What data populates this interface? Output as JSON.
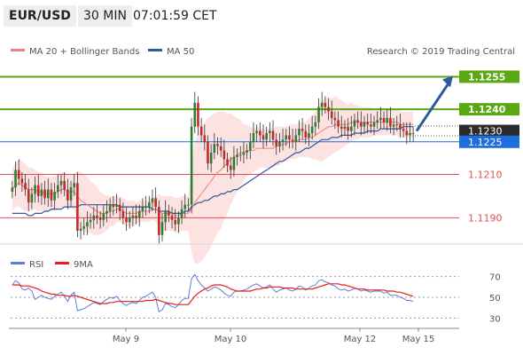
{
  "header": {
    "symbol": "EUR/USD",
    "timeframe": "30 MIN",
    "time": "07:01:59 CET"
  },
  "chart_data": {
    "type": "candlestick",
    "legend": [
      {
        "label": "MA 20 + Bollinger Bands",
        "color": "#f08080"
      },
      {
        "label": "MA 50",
        "color": "#2d5a9c"
      }
    ],
    "copyright": "Research © 2019 Trading Central",
    "ylim": [
      1.1175,
      1.1265
    ],
    "x_labels": [
      "May 9",
      "May 10",
      "May 12",
      "May 15"
    ],
    "levels": [
      {
        "value": 1.1255,
        "label": "1.1255",
        "color": "#5aa912",
        "kind": "resistance"
      },
      {
        "value": 1.124,
        "label": "1.1240",
        "color": "#5aa912",
        "kind": "resistance"
      },
      {
        "value": 1.123,
        "label": "1.1230",
        "color": "#333333",
        "kind": "last-price"
      },
      {
        "value": 1.1225,
        "label": "1.1225",
        "color": "#1e6ee0",
        "kind": "pivot"
      },
      {
        "value": 1.121,
        "label": "1.1210",
        "color": "#e05050",
        "kind": "support"
      },
      {
        "value": 1.119,
        "label": "1.1190",
        "color": "#e05050",
        "kind": "support"
      }
    ],
    "series_close": [
      1.1204,
      1.1212,
      1.1208,
      1.1206,
      1.1203,
      1.1197,
      1.1201,
      1.1205,
      1.12,
      1.1203,
      1.1199,
      1.1203,
      1.1198,
      1.1202,
      1.1205,
      1.1207,
      1.1203,
      1.1198,
      1.1204,
      1.1206,
      1.1184,
      1.1185,
      1.1186,
      1.1188,
      1.1189,
      1.1191,
      1.119,
      1.1189,
      1.1192,
      1.1193,
      1.1196,
      1.1195,
      1.1196,
      1.1193,
      1.119,
      1.1188,
      1.119,
      1.1191,
      1.119,
      1.1193,
      1.1195,
      1.1195,
      1.1197,
      1.1199,
      1.1195,
      1.1182,
      1.1188,
      1.1193,
      1.1191,
      1.1189,
      1.1187,
      1.119,
      1.1194,
      1.1196,
      1.1196,
      1.1232,
      1.1243,
      1.1232,
      1.1228,
      1.1225,
      1.1215,
      1.122,
      1.1224,
      1.1223,
      1.1221,
      1.1217,
      1.1214,
      1.1212,
      1.1218,
      1.1219,
      1.1219,
      1.122,
      1.1221,
      1.1225,
      1.1229,
      1.123,
      1.1228,
      1.1226,
      1.1229,
      1.123,
      1.1226,
      1.1223,
      1.1225,
      1.1226,
      1.1228,
      1.1226,
      1.1225,
      1.1228,
      1.1231,
      1.123,
      1.1227,
      1.1229,
      1.1232,
      1.1234,
      1.1241,
      1.1243,
      1.1241,
      1.1239,
      1.1236,
      1.1235,
      1.1232,
      1.1231,
      1.1232,
      1.123,
      1.1232,
      1.1235,
      1.1234,
      1.1232,
      1.1234,
      1.1233,
      1.1232,
      1.1234,
      1.1235,
      1.1236,
      1.1234,
      1.1236,
      1.1232,
      1.1233,
      1.1233,
      1.1231,
      1.123,
      1.1228,
      1.1229,
      1.1229
    ],
    "ma20": [
      1.1203,
      1.1205,
      1.1206,
      1.1205,
      1.1204,
      1.1203,
      1.1203,
      1.1203,
      1.1202,
      1.1202,
      1.1201,
      1.1201,
      1.1201,
      1.1201,
      1.1202,
      1.1203,
      1.1203,
      1.1202,
      1.1202,
      1.1202,
      1.12,
      1.1198,
      1.1197,
      1.1196,
      1.1195,
      1.1194,
      1.1193,
      1.1192,
      1.1192,
      1.1192,
      1.1193,
      1.1193,
      1.1194,
      1.1194,
      1.1193,
      1.1192,
      1.1192,
      1.1192,
      1.1192,
      1.1193,
      1.1193,
      1.1193,
      1.1193,
      1.1194,
      1.1194,
      1.1193,
      1.1192,
      1.1192,
      1.1192,
      1.1192,
      1.1191,
      1.1191,
      1.1192,
      1.1192,
      1.1192,
      1.1194,
      1.1197,
      1.1199,
      1.1201,
      1.1203,
      1.1205,
      1.1207,
      1.1209,
      1.1211,
      1.1212,
      1.1214,
      1.1215,
      1.1217,
      1.1218,
      1.1219,
      1.122,
      1.122,
      1.1221,
      1.1221,
      1.1221,
      1.1222,
      1.1222,
      1.1222,
      1.1222,
      1.1222,
      1.1222,
      1.1223,
      1.1223,
      1.1224,
      1.1224,
      1.1225,
      1.1225,
      1.1225,
      1.1226,
      1.1226,
      1.1226,
      1.1227,
      1.1227,
      1.1228,
      1.1229,
      1.123,
      1.1231,
      1.1232,
      1.1232,
      1.1233,
      1.1233,
      1.1233,
      1.1233,
      1.1233,
      1.1234,
      1.1234,
      1.1234,
      1.1234,
      1.1234,
      1.1234,
      1.1234,
      1.1234,
      1.1234,
      1.1234,
      1.1234,
      1.1234,
      1.1234,
      1.1234,
      1.1234,
      1.1233,
      1.1233,
      1.1233,
      1.1233,
      1.1233
    ],
    "ma50": [
      1.1192,
      1.1192,
      1.1192,
      1.1192,
      1.1192,
      1.1191,
      1.1191,
      1.1192,
      1.1192,
      1.1192,
      1.1193,
      1.1193,
      1.1194,
      1.1194,
      1.1194,
      1.1194,
      1.1195,
      1.1195,
      1.1195,
      1.1195,
      1.1195,
      1.1196,
      1.1196,
      1.1196,
      1.1196,
      1.1196,
      1.1196,
      1.1196,
      1.1196,
      1.1196,
      1.1196,
      1.1196,
      1.1196,
      1.1195,
      1.1195,
      1.1195,
      1.1195,
      1.1195,
      1.1195,
      1.1195,
      1.1195,
      1.1195,
      1.1195,
      1.1194,
      1.1194,
      1.1193,
      1.1193,
      1.1193,
      1.1193,
      1.1192,
      1.1192,
      1.1192,
      1.1192,
      1.1193,
      1.1193,
      1.1195,
      1.1196,
      1.1197,
      1.1197,
      1.1198,
      1.1198,
      1.1199,
      1.12,
      1.12,
      1.1201,
      1.1201,
      1.1202,
      1.1202,
      1.1203,
      1.1203,
      1.1204,
      1.1205,
      1.1206,
      1.1207,
      1.1208,
      1.1209,
      1.121,
      1.1211,
      1.1212,
      1.1213,
      1.1214,
      1.1215,
      1.1216,
      1.1216,
      1.1217,
      1.1218,
      1.1219,
      1.122,
      1.122,
      1.1221,
      1.1222,
      1.1222,
      1.1223,
      1.1224,
      1.1225,
      1.1226,
      1.1226,
      1.1226,
      1.1227,
      1.1227,
      1.1227,
      1.1228,
      1.1228,
      1.1228,
      1.1228,
      1.1229,
      1.1229,
      1.1229,
      1.1229,
      1.123,
      1.123,
      1.123,
      1.123,
      1.1231,
      1.1231,
      1.1231,
      1.1231,
      1.1231,
      1.1231,
      1.1231,
      1.1232,
      1.1232,
      1.1232,
      1.1232
    ],
    "bb_width": [
      0.001,
      0.001,
      0.0011,
      0.0011,
      0.0011,
      0.001,
      0.001,
      0.0009,
      0.0009,
      0.0009,
      0.0008,
      0.0008,
      0.0008,
      0.0008,
      0.0008,
      0.0008,
      0.0008,
      0.0008,
      0.0008,
      0.0008,
      0.0012,
      0.0013,
      0.0013,
      0.0013,
      0.0012,
      0.0012,
      0.0011,
      0.001,
      0.0009,
      0.0008,
      0.0007,
      0.0007,
      0.0006,
      0.0006,
      0.0006,
      0.0006,
      0.0006,
      0.0006,
      0.0005,
      0.0005,
      0.0005,
      0.0005,
      0.0005,
      0.0005,
      0.0006,
      0.0008,
      0.0008,
      0.0008,
      0.0008,
      0.0008,
      0.0008,
      0.0008,
      0.0008,
      0.0008,
      0.0008,
      0.002,
      0.0028,
      0.003,
      0.0031,
      0.0031,
      0.0031,
      0.003,
      0.0029,
      0.0028,
      0.0027,
      0.0025,
      0.0023,
      0.0021,
      0.0019,
      0.0017,
      0.0015,
      0.0013,
      0.0012,
      0.0011,
      0.001,
      0.001,
      0.0009,
      0.0009,
      0.0009,
      0.0009,
      0.0009,
      0.0009,
      0.0009,
      0.0008,
      0.0008,
      0.0008,
      0.0008,
      0.0008,
      0.0008,
      0.0008,
      0.0008,
      0.0009,
      0.001,
      0.0011,
      0.0013,
      0.0014,
      0.0014,
      0.0014,
      0.0013,
      0.0013,
      0.0012,
      0.0011,
      0.001,
      0.0009,
      0.0009,
      0.0008,
      0.0008,
      0.0007,
      0.0007,
      0.0007,
      0.0007,
      0.0006,
      0.0006,
      0.0006,
      0.0006,
      0.0006,
      0.0006,
      0.0006,
      0.0006,
      0.0006,
      0.0006,
      0.0006,
      0.0006,
      0.0006
    ],
    "forecast": {
      "from": 1.123,
      "to": 1.1255
    },
    "rsi": {
      "legend": [
        {
          "label": "RSI",
          "color": "#5b7fd6"
        },
        {
          "label": "9MA",
          "color": "#e81c1c"
        }
      ],
      "ylim": [
        20,
        80
      ],
      "ticks": [
        "70",
        "50",
        "30"
      ],
      "values": [
        62,
        66,
        64,
        58,
        57,
        59,
        56,
        48,
        50,
        52,
        50,
        49,
        48,
        51,
        53,
        55,
        51,
        46,
        52,
        55,
        37,
        38,
        39,
        41,
        43,
        45,
        44,
        43,
        46,
        48,
        50,
        49,
        51,
        47,
        44,
        42,
        44,
        45,
        44,
        47,
        50,
        51,
        53,
        55,
        50,
        36,
        38,
        44,
        43,
        41,
        40,
        43,
        47,
        49,
        49,
        68,
        72,
        66,
        62,
        59,
        56,
        58,
        60,
        59,
        57,
        54,
        52,
        51,
        55,
        56,
        56,
        57,
        58,
        60,
        62,
        63,
        61,
        59,
        60,
        62,
        58,
        55,
        57,
        58,
        59,
        57,
        56,
        58,
        61,
        60,
        57,
        59,
        61,
        62,
        66,
        67,
        65,
        64,
        62,
        61,
        58,
        57,
        58,
        56,
        57,
        59,
        58,
        56,
        57,
        56,
        55,
        56,
        56,
        56,
        54,
        55,
        52,
        52,
        52,
        50,
        49,
        47,
        47,
        46
      ],
      "ma9": [
        62,
        62,
        62,
        61,
        61,
        61,
        60,
        59,
        58,
        56,
        55,
        54,
        53,
        53,
        52,
        52,
        52,
        51,
        51,
        52,
        51,
        50,
        49,
        48,
        47,
        46,
        45,
        44,
        44,
        44,
        45,
        45,
        46,
        46,
        46,
        46,
        46,
        46,
        46,
        46,
        46,
        47,
        47,
        47,
        48,
        47,
        46,
        45,
        44,
        44,
        43,
        43,
        43,
        43,
        43,
        47,
        51,
        54,
        56,
        58,
        59,
        61,
        62,
        62,
        62,
        61,
        60,
        58,
        57,
        56,
        56,
        56,
        56,
        56,
        57,
        58,
        58,
        59,
        59,
        60,
        60,
        60,
        60,
        59,
        59,
        59,
        59,
        58,
        58,
        58,
        58,
        58,
        58,
        59,
        60,
        61,
        62,
        63,
        63,
        63,
        63,
        62,
        62,
        61,
        60,
        59,
        58,
        58,
        58,
        57,
        57,
        57,
        57,
        57,
        57,
        56,
        56,
        56,
        55,
        55,
        54,
        53,
        52,
        51
      ]
    }
  }
}
